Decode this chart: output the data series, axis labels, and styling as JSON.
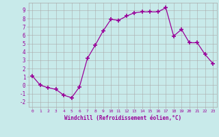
{
  "x": [
    0,
    1,
    2,
    3,
    4,
    5,
    6,
    7,
    8,
    9,
    10,
    11,
    12,
    13,
    14,
    15,
    16,
    17,
    18,
    19,
    20,
    21,
    22,
    23
  ],
  "y": [
    1.1,
    0.0,
    -0.3,
    -0.5,
    -1.2,
    -1.5,
    -0.2,
    3.2,
    4.8,
    6.5,
    7.9,
    7.8,
    8.3,
    8.7,
    8.8,
    8.8,
    8.8,
    9.3,
    5.9,
    6.7,
    5.1,
    5.1,
    3.7,
    2.6
  ],
  "line_color": "#990099",
  "marker": "+",
  "marker_size": 4,
  "bg_color": "#c8eaea",
  "grid_color": "#aaaaaa",
  "xlabel": "Windchill (Refroidissement éolien,°C)",
  "xlabel_color": "#990099",
  "tick_color": "#990099",
  "xlim": [
    -0.5,
    23.5
  ],
  "ylim": [
    -2.6,
    9.9
  ],
  "yticks": [
    -2,
    -1,
    0,
    1,
    2,
    3,
    4,
    5,
    6,
    7,
    8,
    9
  ],
  "xticks": [
    0,
    1,
    2,
    3,
    4,
    5,
    6,
    7,
    8,
    9,
    10,
    11,
    12,
    13,
    14,
    15,
    16,
    17,
    18,
    19,
    20,
    21,
    22,
    23
  ],
  "spine_color": "#aaaaaa"
}
